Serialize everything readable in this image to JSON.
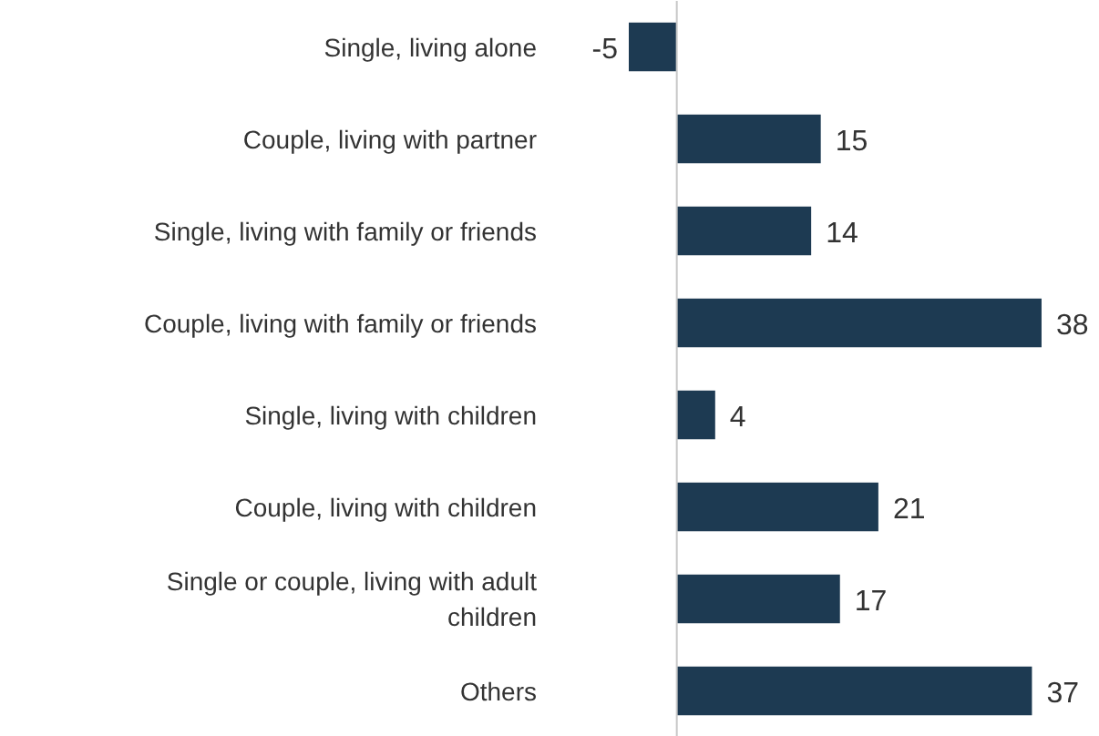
{
  "chart_data": {
    "type": "bar",
    "orientation": "horizontal",
    "categories": [
      "Single, living alone",
      "Couple, living with partner",
      "Single, living with family or friends",
      "Couple, living with family or friends",
      "Single, living with children",
      "Couple, living with children",
      "Single or couple, living with adult children",
      "Others"
    ],
    "values": [
      -5,
      15,
      14,
      38,
      4,
      21,
      17,
      37
    ],
    "color": "#1d3a52",
    "data_labels": true
  }
}
